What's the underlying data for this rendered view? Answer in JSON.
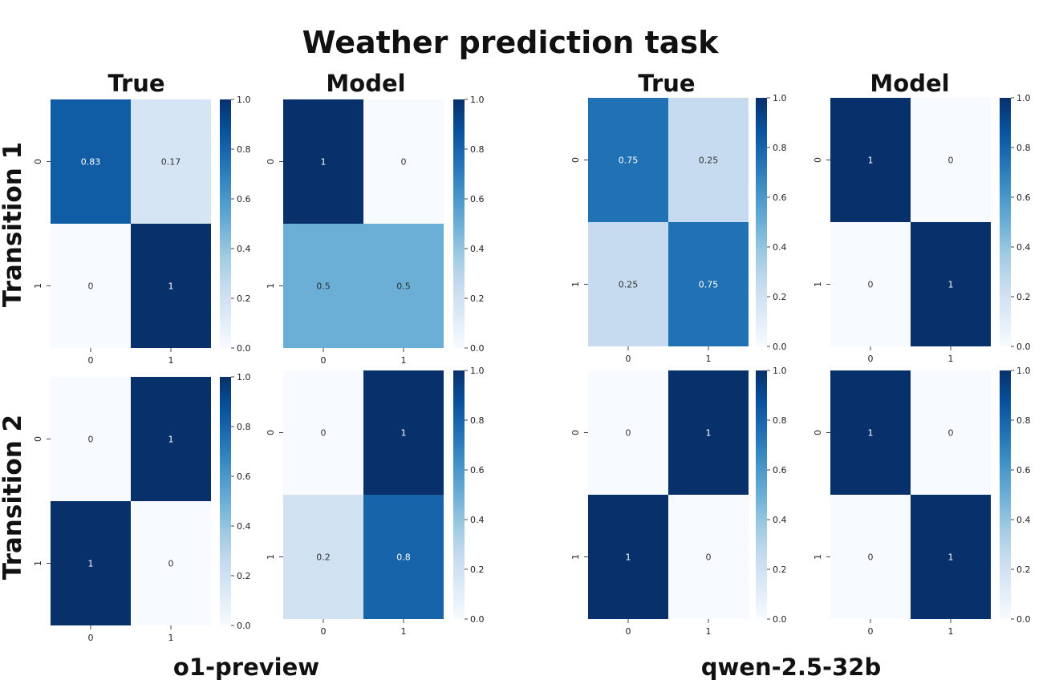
{
  "title": "Weather prediction task",
  "row_labels": [
    "Transition 1",
    "Transition 2"
  ],
  "panel_titles": [
    "True",
    "Model",
    "True",
    "Model"
  ],
  "group_labels": [
    "o1-preview",
    "qwen-2.5-32b"
  ],
  "colormap": {
    "name": "Blues",
    "low": "#f7fbff",
    "high": "#08306b"
  },
  "chart_data": [
    {
      "type": "heatmap",
      "group": "o1-preview",
      "row": "Transition 1",
      "title": "True",
      "x_ticks": [
        "0",
        "1"
      ],
      "y_ticks": [
        "0",
        "1"
      ],
      "values": [
        [
          0.83,
          0.17
        ],
        [
          0,
          1
        ]
      ],
      "labels": [
        [
          "0.83",
          "0.17"
        ],
        [
          "0",
          "1"
        ]
      ],
      "colorbar_ticks": [
        "0.0",
        "0.2",
        "0.4",
        "0.6",
        "0.8",
        "1.0"
      ],
      "vmin": 0,
      "vmax": 1
    },
    {
      "type": "heatmap",
      "group": "o1-preview",
      "row": "Transition 1",
      "title": "Model",
      "x_ticks": [
        "0",
        "1"
      ],
      "y_ticks": [
        "0",
        "1"
      ],
      "values": [
        [
          1,
          0
        ],
        [
          0.5,
          0.5
        ]
      ],
      "labels": [
        [
          "1",
          "0"
        ],
        [
          "0.5",
          "0.5"
        ]
      ],
      "colorbar_ticks": [
        "0.0",
        "0.2",
        "0.4",
        "0.6",
        "0.8",
        "1.0"
      ],
      "vmin": 0,
      "vmax": 1
    },
    {
      "type": "heatmap",
      "group": "qwen-2.5-32b",
      "row": "Transition 1",
      "title": "True",
      "x_ticks": [
        "0",
        "1"
      ],
      "y_ticks": [
        "0",
        "1"
      ],
      "values": [
        [
          0.75,
          0.25
        ],
        [
          0.25,
          0.75
        ]
      ],
      "labels": [
        [
          "0.75",
          "0.25"
        ],
        [
          "0.25",
          "0.75"
        ]
      ],
      "colorbar_ticks": [
        "0.0",
        "0.2",
        "0.4",
        "0.6",
        "0.8",
        "1.0"
      ],
      "vmin": 0,
      "vmax": 1
    },
    {
      "type": "heatmap",
      "group": "qwen-2.5-32b",
      "row": "Transition 1",
      "title": "Model",
      "x_ticks": [
        "0",
        "1"
      ],
      "y_ticks": [
        "0",
        "1"
      ],
      "values": [
        [
          1,
          0
        ],
        [
          0,
          1
        ]
      ],
      "labels": [
        [
          "1",
          "0"
        ],
        [
          "0",
          "1"
        ]
      ],
      "colorbar_ticks": [
        "0.0",
        "0.2",
        "0.4",
        "0.6",
        "0.8",
        "1.0"
      ],
      "vmin": 0,
      "vmax": 1
    },
    {
      "type": "heatmap",
      "group": "o1-preview",
      "row": "Transition 2",
      "title": "True",
      "x_ticks": [
        "0",
        "1"
      ],
      "y_ticks": [
        "0",
        "1"
      ],
      "values": [
        [
          0,
          1
        ],
        [
          1,
          0
        ]
      ],
      "labels": [
        [
          "0",
          "1"
        ],
        [
          "1",
          "0"
        ]
      ],
      "colorbar_ticks": [
        "0.0",
        "0.2",
        "0.4",
        "0.6",
        "0.8",
        "1.0"
      ],
      "vmin": 0,
      "vmax": 1
    },
    {
      "type": "heatmap",
      "group": "o1-preview",
      "row": "Transition 2",
      "title": "Model",
      "x_ticks": [
        "0",
        "1"
      ],
      "y_ticks": [
        "0",
        "1"
      ],
      "values": [
        [
          0,
          1
        ],
        [
          0.2,
          0.8
        ]
      ],
      "labels": [
        [
          "0",
          "1"
        ],
        [
          "0.2",
          "0.8"
        ]
      ],
      "colorbar_ticks": [
        "0.0",
        "0.2",
        "0.4",
        "0.6",
        "0.8",
        "1.0"
      ],
      "vmin": 0,
      "vmax": 1
    },
    {
      "type": "heatmap",
      "group": "qwen-2.5-32b",
      "row": "Transition 2",
      "title": "True",
      "x_ticks": [
        "0",
        "1"
      ],
      "y_ticks": [
        "0",
        "1"
      ],
      "values": [
        [
          0,
          1
        ],
        [
          1,
          0
        ]
      ],
      "labels": [
        [
          "0",
          "1"
        ],
        [
          "1",
          "0"
        ]
      ],
      "colorbar_ticks": [
        "0.0",
        "0.2",
        "0.4",
        "0.6",
        "0.8",
        "1.0"
      ],
      "vmin": 0,
      "vmax": 1
    },
    {
      "type": "heatmap",
      "group": "qwen-2.5-32b",
      "row": "Transition 2",
      "title": "Model",
      "x_ticks": [
        "0",
        "1"
      ],
      "y_ticks": [
        "0",
        "1"
      ],
      "values": [
        [
          1,
          0
        ],
        [
          0,
          1
        ]
      ],
      "labels": [
        [
          "1",
          "0"
        ],
        [
          "0",
          "1"
        ]
      ],
      "colorbar_ticks": [
        "0.0",
        "0.2",
        "0.4",
        "0.6",
        "0.8",
        "1.0"
      ],
      "vmin": 0,
      "vmax": 1
    }
  ]
}
